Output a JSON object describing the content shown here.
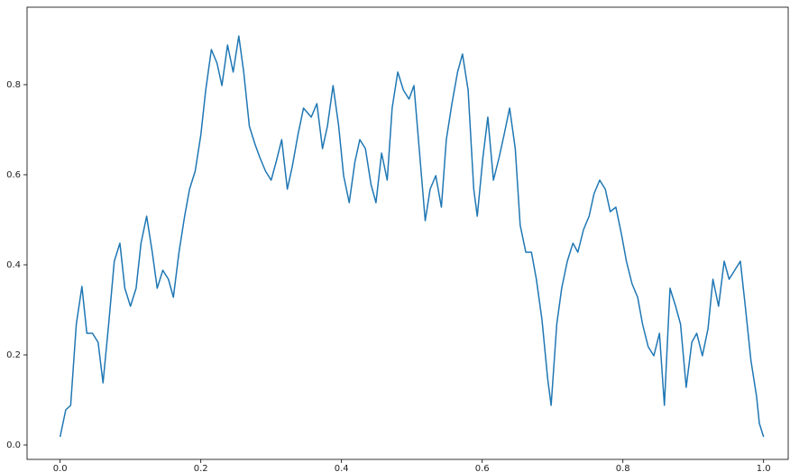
{
  "chart_data": {
    "type": "line",
    "x": [
      0,
      0.008,
      0.015,
      0.023,
      0.031,
      0.038,
      0.046,
      0.054,
      0.061,
      0.069,
      0.077,
      0.085,
      0.092,
      0.1,
      0.108,
      0.115,
      0.123,
      0.131,
      0.138,
      0.146,
      0.154,
      0.161,
      0.169,
      0.177,
      0.184,
      0.192,
      0.2,
      0.207,
      0.215,
      0.223,
      0.23,
      0.238,
      0.246,
      0.254,
      0.261,
      0.269,
      0.277,
      0.284,
      0.292,
      0.3,
      0.307,
      0.315,
      0.323,
      0.33,
      0.338,
      0.346,
      0.357,
      0.365,
      0.373,
      0.38,
      0.388,
      0.396,
      0.403,
      0.411,
      0.419,
      0.426,
      0.434,
      0.442,
      0.449,
      0.457,
      0.465,
      0.472,
      0.48,
      0.488,
      0.496,
      0.503,
      0.511,
      0.519,
      0.526,
      0.534,
      0.542,
      0.549,
      0.557,
      0.565,
      0.572,
      0.58,
      0.588,
      0.593,
      0.601,
      0.608,
      0.616,
      0.624,
      0.631,
      0.639,
      0.647,
      0.654,
      0.662,
      0.67,
      0.677,
      0.685,
      0.693,
      0.698,
      0.706,
      0.713,
      0.721,
      0.729,
      0.736,
      0.744,
      0.752,
      0.759,
      0.767,
      0.775,
      0.782,
      0.79,
      0.798,
      0.805,
      0.813,
      0.821,
      0.828,
      0.836,
      0.844,
      0.852,
      0.859,
      0.867,
      0.875,
      0.882,
      0.89,
      0.898,
      0.905,
      0.913,
      0.921,
      0.928,
      0.936,
      0.944,
      0.951,
      0.959,
      0.967,
      0.974,
      0.982,
      0.99,
      0.994,
      1.0
    ],
    "series": [
      {
        "color": "#1f77b4",
        "values": [
          0.018,
          0.078,
          0.088,
          0.268,
          0.352,
          0.248,
          0.248,
          0.228,
          0.138,
          0.268,
          0.408,
          0.448,
          0.348,
          0.308,
          0.348,
          0.448,
          0.508,
          0.428,
          0.348,
          0.388,
          0.368,
          0.328,
          0.428,
          0.508,
          0.568,
          0.608,
          0.688,
          0.788,
          0.878,
          0.848,
          0.798,
          0.888,
          0.828,
          0.908,
          0.828,
          0.708,
          0.668,
          0.638,
          0.608,
          0.588,
          0.628,
          0.678,
          0.568,
          0.618,
          0.688,
          0.748,
          0.728,
          0.758,
          0.658,
          0.708,
          0.798,
          0.708,
          0.598,
          0.538,
          0.628,
          0.678,
          0.658,
          0.578,
          0.538,
          0.648,
          0.588,
          0.748,
          0.828,
          0.788,
          0.768,
          0.798,
          0.648,
          0.498,
          0.568,
          0.598,
          0.528,
          0.678,
          0.758,
          0.828,
          0.868,
          0.788,
          0.568,
          0.508,
          0.638,
          0.728,
          0.588,
          0.638,
          0.688,
          0.748,
          0.658,
          0.488,
          0.428,
          0.428,
          0.368,
          0.278,
          0.148,
          0.088,
          0.268,
          0.348,
          0.408,
          0.448,
          0.428,
          0.478,
          0.508,
          0.558,
          0.588,
          0.568,
          0.518,
          0.528,
          0.468,
          0.408,
          0.358,
          0.328,
          0.268,
          0.218,
          0.198,
          0.248,
          0.088,
          0.348,
          0.308,
          0.268,
          0.128,
          0.228,
          0.248,
          0.198,
          0.258,
          0.368,
          0.308,
          0.408,
          0.368,
          0.388,
          0.408,
          0.308,
          0.188,
          0.108,
          0.048,
          0.018
        ]
      }
    ],
    "xlim": [
      -0.047,
      1.035
    ],
    "ylim": [
      -0.032,
      0.972
    ],
    "xticks": [
      {
        "value": 0,
        "label": "0.0"
      },
      {
        "value": 0.2,
        "label": "0.2"
      },
      {
        "value": 0.4,
        "label": "0.4"
      },
      {
        "value": 0.6,
        "label": "0.6"
      },
      {
        "value": 0.8,
        "label": "0.8"
      },
      {
        "value": 1,
        "label": "1.0"
      }
    ],
    "yticks": [
      {
        "value": 0,
        "label": "0.0"
      },
      {
        "value": 0.2,
        "label": "0.2"
      },
      {
        "value": 0.4,
        "label": "0.4"
      },
      {
        "value": 0.6,
        "label": "0.6"
      },
      {
        "value": 0.8,
        "label": "0.8"
      }
    ]
  }
}
